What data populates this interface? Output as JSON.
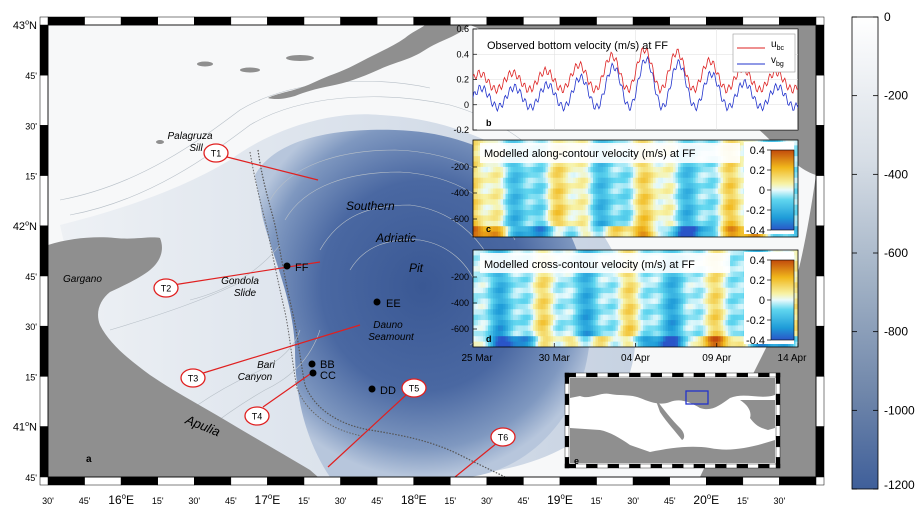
{
  "lat_labels": [
    {
      "parts": [
        [
          "43",
          "n"
        ],
        [
          "o",
          "s"
        ],
        [
          "N",
          "n"
        ]
      ]
    },
    {
      "parts": [
        [
          "45'",
          "n"
        ]
      ]
    },
    {
      "parts": [
        [
          "30'",
          "n"
        ]
      ]
    },
    {
      "parts": [
        [
          "15'",
          "n"
        ]
      ]
    },
    {
      "parts": [
        [
          "42",
          "n"
        ],
        [
          "o",
          "s"
        ],
        [
          "N",
          "n"
        ]
      ]
    },
    {
      "parts": [
        [
          "45'",
          "n"
        ]
      ]
    },
    {
      "parts": [
        [
          "30'",
          "n"
        ]
      ]
    },
    {
      "parts": [
        [
          "15'",
          "n"
        ]
      ]
    },
    {
      "parts": [
        [
          "41",
          "n"
        ],
        [
          "o",
          "s"
        ],
        [
          "N",
          "n"
        ]
      ]
    },
    {
      "parts": [
        [
          "45'",
          "n"
        ]
      ]
    }
  ],
  "lon_labels": [
    {
      "parts": [
        [
          "30'",
          "n"
        ]
      ]
    },
    {
      "parts": [
        [
          "45'",
          "n"
        ]
      ]
    },
    {
      "parts": [
        [
          "16",
          "n"
        ],
        [
          "o",
          "s"
        ],
        [
          "E",
          "n"
        ]
      ]
    },
    {
      "parts": [
        [
          "15'",
          "n"
        ]
      ]
    },
    {
      "parts": [
        [
          "30'",
          "n"
        ]
      ]
    },
    {
      "parts": [
        [
          "45'",
          "n"
        ]
      ]
    },
    {
      "parts": [
        [
          "17",
          "n"
        ],
        [
          "o",
          "s"
        ],
        [
          "E",
          "n"
        ]
      ]
    },
    {
      "parts": [
        [
          "15'",
          "n"
        ]
      ]
    },
    {
      "parts": [
        [
          "30'",
          "n"
        ]
      ]
    },
    {
      "parts": [
        [
          "45'",
          "n"
        ]
      ]
    },
    {
      "parts": [
        [
          "18",
          "n"
        ],
        [
          "o",
          "s"
        ],
        [
          "E",
          "n"
        ]
      ]
    },
    {
      "parts": [
        [
          "15'",
          "n"
        ]
      ]
    },
    {
      "parts": [
        [
          "30'",
          "n"
        ]
      ]
    },
    {
      "parts": [
        [
          "45'",
          "n"
        ]
      ]
    },
    {
      "parts": [
        [
          "19",
          "n"
        ],
        [
          "o",
          "s"
        ],
        [
          "E",
          "n"
        ]
      ]
    },
    {
      "parts": [
        [
          "15'",
          "n"
        ]
      ]
    },
    {
      "parts": [
        [
          "30'",
          "n"
        ]
      ]
    },
    {
      "parts": [
        [
          "45'",
          "n"
        ]
      ]
    },
    {
      "parts": [
        [
          "20",
          "n"
        ],
        [
          "o",
          "s"
        ],
        [
          "E",
          "n"
        ]
      ]
    },
    {
      "parts": [
        [
          "15'",
          "n"
        ]
      ]
    },
    {
      "parts": [
        [
          "30'",
          "n"
        ]
      ]
    }
  ],
  "place_labels": [
    {
      "name": "palagruza-label",
      "lines": [
        "Palagruza",
        "Sill"
      ]
    },
    {
      "name": "southern-label",
      "lines": [
        "Southern"
      ]
    },
    {
      "name": "adriatic-label",
      "lines": [
        "Adriatic"
      ]
    },
    {
      "name": "pit-label",
      "lines": [
        "Pit"
      ]
    },
    {
      "name": "gargano-label",
      "lines": [
        "Gargano"
      ]
    },
    {
      "name": "gondola-label",
      "lines": [
        "Gondola",
        "Slide"
      ]
    },
    {
      "name": "dauno-label",
      "lines": [
        "Dauno",
        "Seamount"
      ]
    },
    {
      "name": "bari-label",
      "lines": [
        "Bari",
        "Canyon"
      ]
    },
    {
      "name": "apulia-label",
      "lines": [
        "Apulia"
      ]
    }
  ],
  "stations": [
    {
      "name": "FF"
    },
    {
      "name": "EE"
    },
    {
      "name": "BB"
    },
    {
      "name": "CC"
    },
    {
      "name": "DD"
    }
  ],
  "transects": [
    "T1",
    "T2",
    "T3",
    "T4",
    "T5",
    "T6"
  ],
  "panel_letters": {
    "a": "a",
    "b": "b",
    "c": "c",
    "d": "d",
    "e": "e"
  },
  "colorbar": {
    "colors": {
      "shallow": "#ffffff",
      "deep": "#3f5f9a"
    },
    "ticks": [
      "0",
      "-200",
      "-400",
      "-600",
      "-800",
      "-1000",
      "-1200"
    ]
  },
  "panel_b": {
    "title": "Observed bottom velocity (m/s) at FF",
    "y_ticks": [
      "0.6",
      "0.4",
      "0.2",
      "0",
      "-0.2"
    ],
    "legend": [
      {
        "base": "u",
        "sub": "bc",
        "color": "#dd2222"
      },
      {
        "base": "v",
        "sub": "bg",
        "color": "#2233cc"
      }
    ]
  },
  "panel_c": {
    "title": "Modelled along-contour velocity (m/s) at FF",
    "y_ticks": [
      "-200",
      "-400",
      "-600"
    ],
    "cbar_ticks": [
      "0.4",
      "0.2",
      "0",
      "-0.2",
      "-0.4"
    ]
  },
  "panel_d": {
    "title": "Modelled cross-contour velocity (m/s) at FF",
    "y_ticks": [
      "-200",
      "-400",
      "-600"
    ],
    "cbar_ticks": [
      "0.4",
      "0.2",
      "0",
      "-0.2",
      "-0.4"
    ],
    "x_ticks": [
      "25 Mar",
      "30 Mar",
      "04 Apr",
      "09 Apr",
      "14 Apr"
    ]
  }
}
